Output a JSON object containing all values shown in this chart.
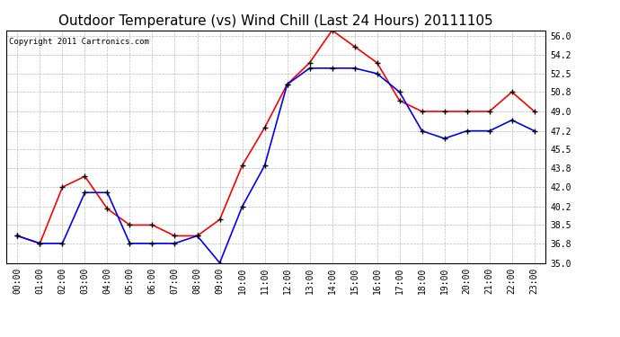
{
  "title": "Outdoor Temperature (vs) Wind Chill (Last 24 Hours) 20111105",
  "copyright": "Copyright 2011 Cartronics.com",
  "x_labels": [
    "00:00",
    "01:00",
    "02:00",
    "03:00",
    "04:00",
    "05:00",
    "06:00",
    "07:00",
    "08:00",
    "09:00",
    "10:00",
    "11:00",
    "12:00",
    "13:00",
    "14:00",
    "15:00",
    "16:00",
    "17:00",
    "18:00",
    "19:00",
    "20:00",
    "21:00",
    "22:00",
    "23:00"
  ],
  "temp_red": [
    37.5,
    36.8,
    42.0,
    43.0,
    40.0,
    38.5,
    38.5,
    37.5,
    37.5,
    39.0,
    44.0,
    47.5,
    51.5,
    53.5,
    56.5,
    55.0,
    53.5,
    50.0,
    49.0,
    49.0,
    49.0,
    49.0,
    50.8,
    49.0
  ],
  "temp_blue": [
    37.5,
    36.8,
    36.8,
    41.5,
    41.5,
    36.8,
    36.8,
    36.8,
    37.5,
    35.0,
    40.2,
    44.0,
    51.5,
    53.0,
    53.0,
    53.0,
    52.5,
    50.8,
    47.2,
    46.5,
    47.2,
    47.2,
    48.2,
    47.2
  ],
  "ylim": [
    35.0,
    56.5
  ],
  "yticks": [
    35.0,
    36.8,
    38.5,
    40.2,
    42.0,
    43.8,
    45.5,
    47.2,
    49.0,
    50.8,
    52.5,
    54.2,
    56.0
  ],
  "bg_color": "#ffffff",
  "grid_color": "#bbbbbb",
  "title_fontsize": 11,
  "copyright_fontsize": 6.5,
  "tick_fontsize": 7,
  "line_width": 1.2,
  "marker_size": 5
}
